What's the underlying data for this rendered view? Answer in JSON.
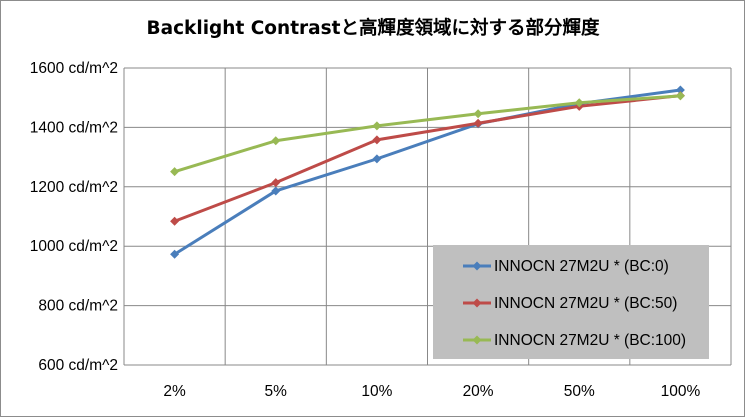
{
  "chart_data": {
    "type": "line",
    "title": "Backlight Contrastと高輝度領域に対する部分輝度",
    "xlabel": "",
    "ylabel": "",
    "categories": [
      "2%",
      "5%",
      "10%",
      "20%",
      "50%",
      "100%"
    ],
    "ylim": [
      600,
      1600
    ],
    "yticks": [
      600,
      800,
      1000,
      1200,
      1400,
      1600
    ],
    "ytick_labels": [
      "600 cd/m^2",
      "800 cd/m^2",
      "1000 cd/m^2",
      "1200 cd/m^2",
      "1400 cd/m^2",
      "1600 cd/m^2"
    ],
    "grid": true,
    "legend_position": "bottom-right",
    "series": [
      {
        "name": "INNOCN 27M2U * (BC:0)",
        "color": "#4a7ebb",
        "values": [
          973,
          1186,
          1294,
          1412,
          1480,
          1526
        ]
      },
      {
        "name": "INNOCN 27M2U * (BC:50)",
        "color": "#be4b48",
        "values": [
          1084,
          1214,
          1358,
          1414,
          1471,
          1507
        ]
      },
      {
        "name": "INNOCN 27M2U * (BC:100)",
        "color": "#98b954",
        "values": [
          1251,
          1355,
          1405,
          1446,
          1483,
          1506
        ]
      }
    ],
    "colors": {
      "grid": "#888888",
      "legend_bg": "#bfbfbf"
    }
  }
}
